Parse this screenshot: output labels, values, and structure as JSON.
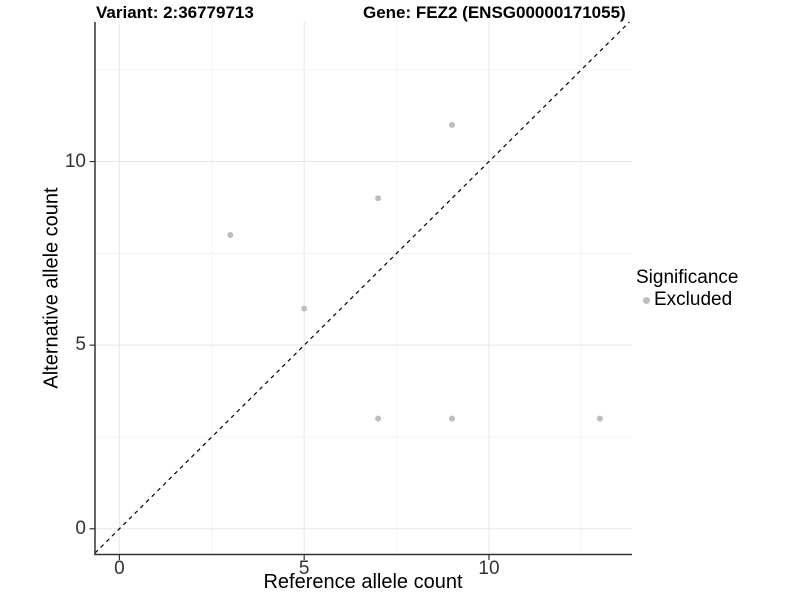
{
  "chart_data": {
    "type": "scatter",
    "title_left": "Variant: 2:36779713",
    "title_right": "Gene: FEZ2 (ENSG00000171055)",
    "xlabel": "Reference allele count",
    "ylabel": "Alternative allele count",
    "xlim": [
      -0.66,
      13.87
    ],
    "ylim": [
      -0.7,
      13.8
    ],
    "x_major_ticks": [
      0,
      5,
      10
    ],
    "y_major_ticks": [
      0,
      5,
      10
    ],
    "x_minor_gridlines": [
      2.5,
      7.5,
      12.5
    ],
    "y_minor_gridlines": [
      2.5,
      7.5,
      12.5
    ],
    "grid": {
      "major_color": "#e7e7e7",
      "minor_color": "#f3f3f3"
    },
    "axis_color": "#333333",
    "point_radius": 3,
    "series": [
      {
        "name": "Excluded",
        "color": "#bdbdbd",
        "points": [
          {
            "x": 3,
            "y": 8
          },
          {
            "x": 5,
            "y": 6
          },
          {
            "x": 7,
            "y": 9
          },
          {
            "x": 7,
            "y": 3
          },
          {
            "x": 9,
            "y": 11
          },
          {
            "x": 9,
            "y": 3
          },
          {
            "x": 13,
            "y": 3
          }
        ]
      }
    ],
    "reference_line": {
      "type": "identity",
      "style": "dashed",
      "color": "#000000"
    },
    "legend": {
      "title": "Significance",
      "position": "right",
      "items": [
        {
          "label": "Excluded",
          "color": "#bdbdbd"
        }
      ]
    }
  }
}
